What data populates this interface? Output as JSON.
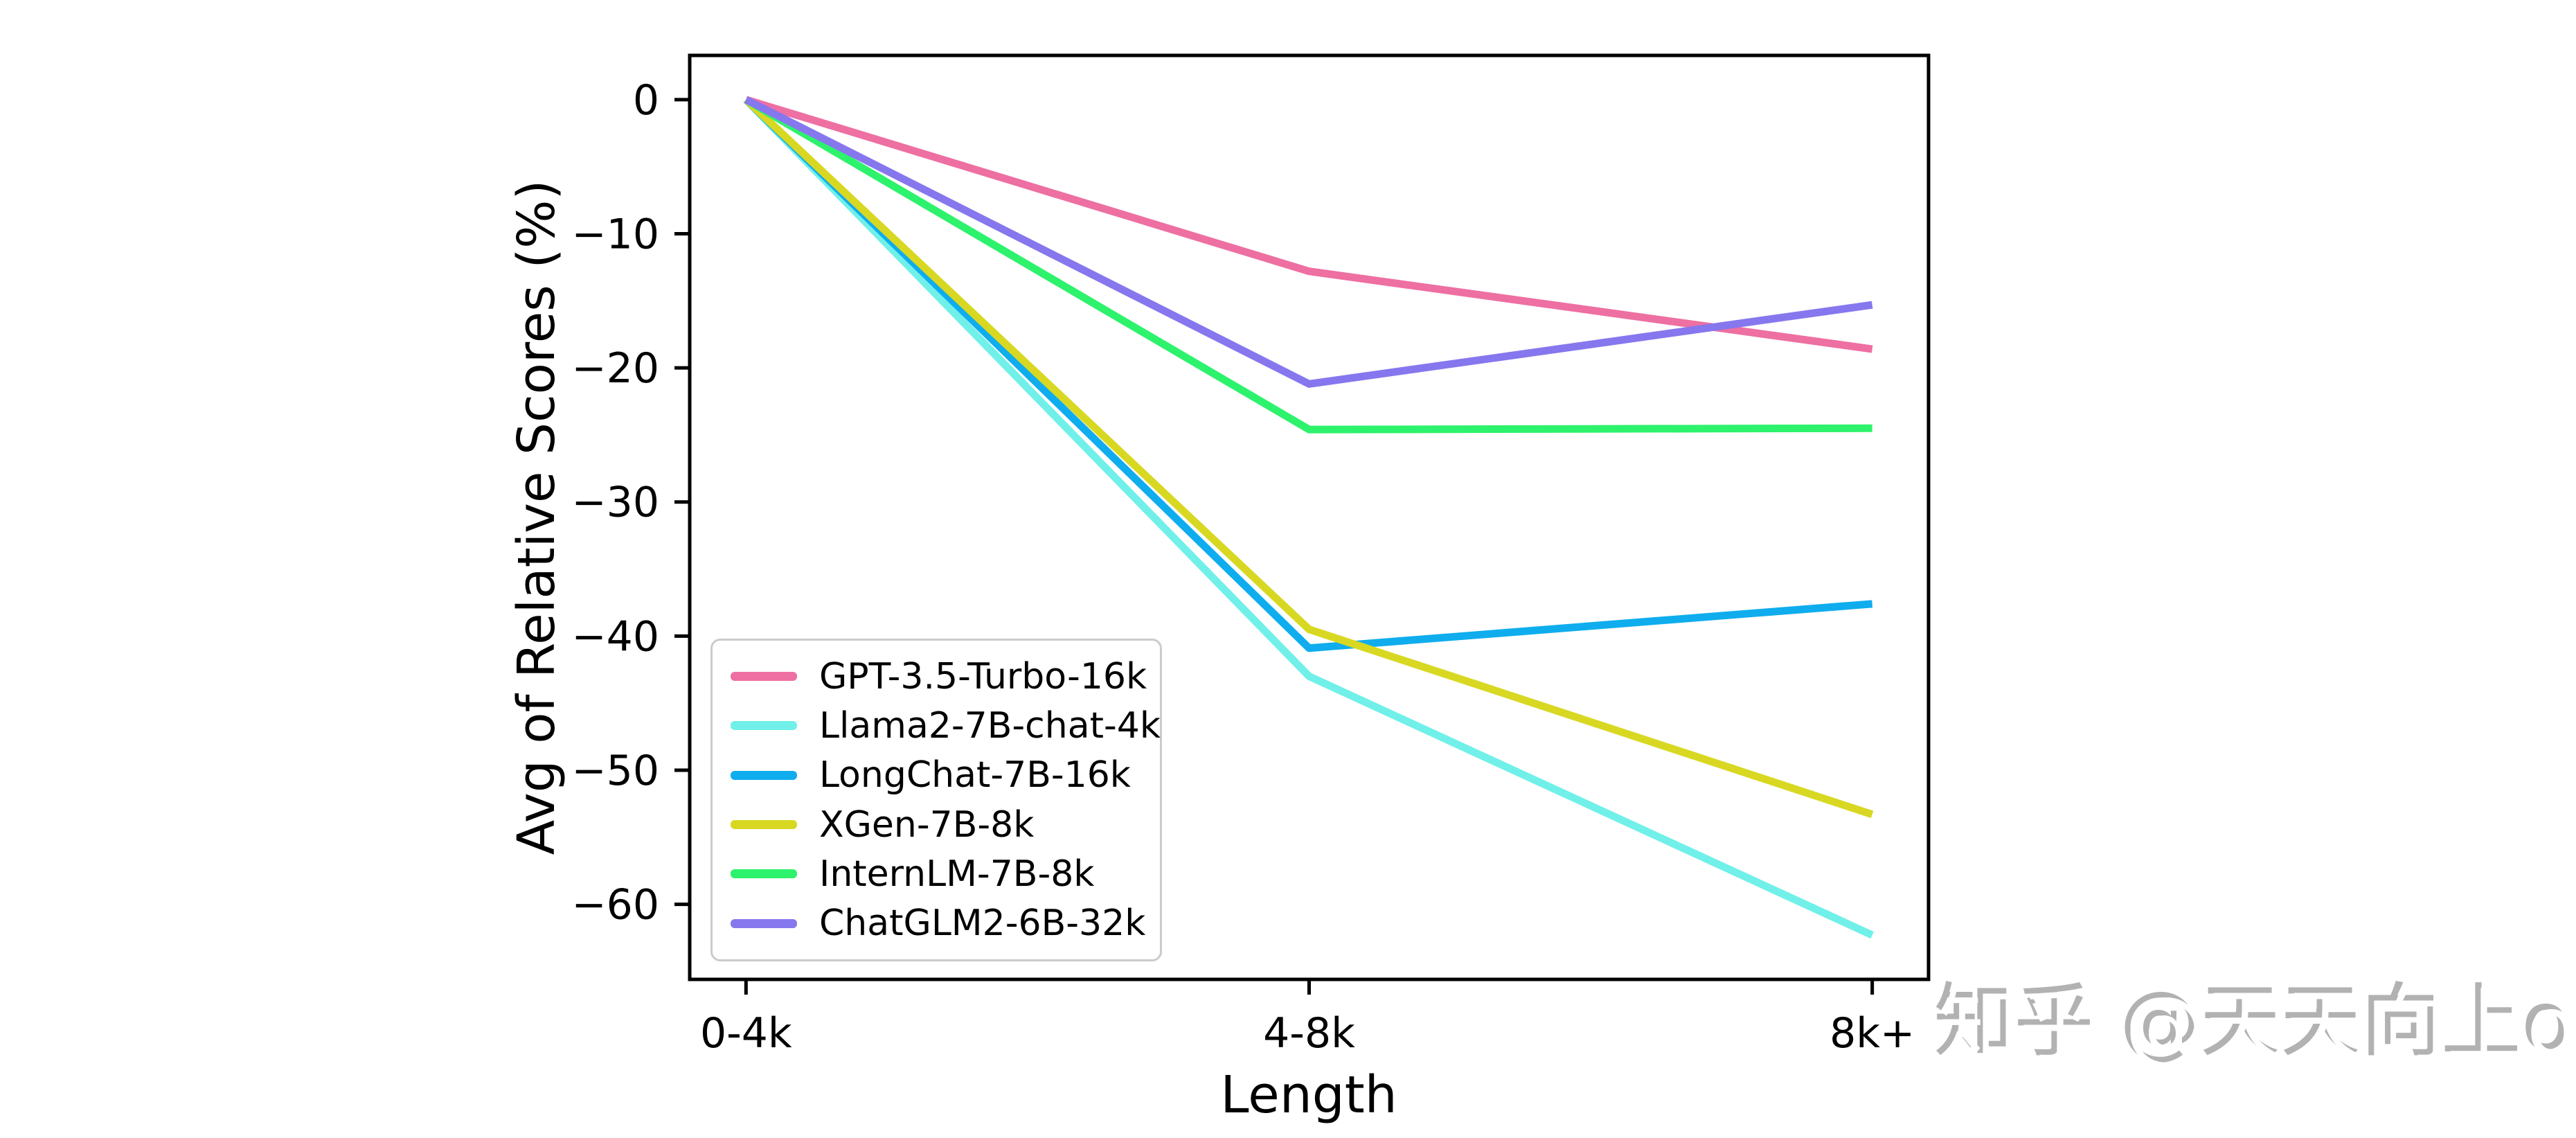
{
  "watermark": {
    "text": "知乎 @天天向上o",
    "color": "#b2b2b2"
  },
  "chart_data": {
    "type": "line",
    "title": "",
    "xlabel": "Length",
    "ylabel": "Avg of Relative Scores (%)",
    "categories": [
      "0-4k",
      "4-8k",
      "8k+"
    ],
    "yticks": [
      0,
      -10,
      -20,
      -30,
      -40,
      -50,
      -60
    ],
    "ytick_labels": [
      "0",
      "−10",
      "−20",
      "−30",
      "−40",
      "−50",
      "−60"
    ],
    "ylim": [
      -65.6,
      3.3
    ],
    "xlim": [
      -0.1,
      2.1
    ],
    "grid": false,
    "legend_position": "lower-left",
    "axis_color": "#000000",
    "line_width": 11,
    "series": [
      {
        "name": "GPT-3.5-Turbo-16k",
        "color": "#ee6fa2",
        "values": [
          0,
          -12.8,
          -18.6
        ]
      },
      {
        "name": "Llama2-7B-chat-4k",
        "color": "#70f0e9",
        "values": [
          0,
          -43.0,
          -62.3
        ]
      },
      {
        "name": "LongChat-7B-16k",
        "color": "#0fadee",
        "values": [
          0,
          -40.9,
          -37.6
        ]
      },
      {
        "name": "XGen-7B-8k",
        "color": "#d8d822",
        "values": [
          0,
          -39.5,
          -53.3
        ]
      },
      {
        "name": "InternLM-7B-8k",
        "color": "#2df26c",
        "values": [
          0,
          -24.6,
          -24.5
        ]
      },
      {
        "name": "ChatGLM2-6B-32k",
        "color": "#8677ee",
        "values": [
          0,
          -21.2,
          -15.3
        ]
      }
    ]
  }
}
